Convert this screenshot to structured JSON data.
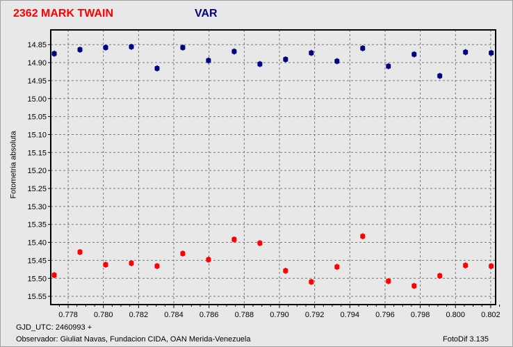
{
  "header": {
    "title_left": "2362 MARK TWAIN",
    "title_right": "VAR"
  },
  "footer": {
    "gjd": "GJD_UTC: 2460993 +",
    "observer": "Observador: Giuliat Navas, Fundacion CIDA, OAN  Merida-Venezuela",
    "software": "FotoDif 3.135"
  },
  "chart_data": {
    "type": "scatter",
    "ylabel": "Fotometria absoluta",
    "xlabel": "GJD_UTC: 2460993 +",
    "xlim": [
      0.77701,
      0.80228
    ],
    "ylim": [
      15.573,
      14.809
    ],
    "y_inverted": true,
    "grid": true,
    "xticks": [
      "0.778",
      "0.780",
      "0.782",
      "0.784",
      "0.786",
      "0.788",
      "0.790",
      "0.792",
      "0.794",
      "0.796",
      "0.798",
      "0.800",
      "0.802"
    ],
    "yticks": [
      "14.85",
      "14.90",
      "14.95",
      "15.00",
      "15.05",
      "15.10",
      "15.15",
      "15.20",
      "15.25",
      "15.30",
      "15.35",
      "15.40",
      "15.45",
      "15.50",
      "15.55"
    ],
    "x": [
      0.77721,
      0.77867,
      0.78013,
      0.78159,
      0.78305,
      0.78451,
      0.78597,
      0.78743,
      0.78889,
      0.79035,
      0.79181,
      0.79327,
      0.79473,
      0.79619,
      0.79765,
      0.79911,
      0.80057,
      0.80203
    ],
    "error": 0.017,
    "series": [
      {
        "color": "#000080",
        "values": [
          14.875,
          14.864,
          14.858,
          14.856,
          14.916,
          14.858,
          14.894,
          14.869,
          14.904,
          14.891,
          14.873,
          14.896,
          14.86,
          14.91,
          14.877,
          14.937,
          14.871,
          14.873
        ]
      },
      {
        "color": "#ff0000",
        "values": [
          15.491,
          15.427,
          15.462,
          15.458,
          15.466,
          15.431,
          15.448,
          15.392,
          15.402,
          15.479,
          15.51,
          15.468,
          15.383,
          15.508,
          15.521,
          15.493,
          15.464,
          15.466
        ]
      }
    ]
  }
}
